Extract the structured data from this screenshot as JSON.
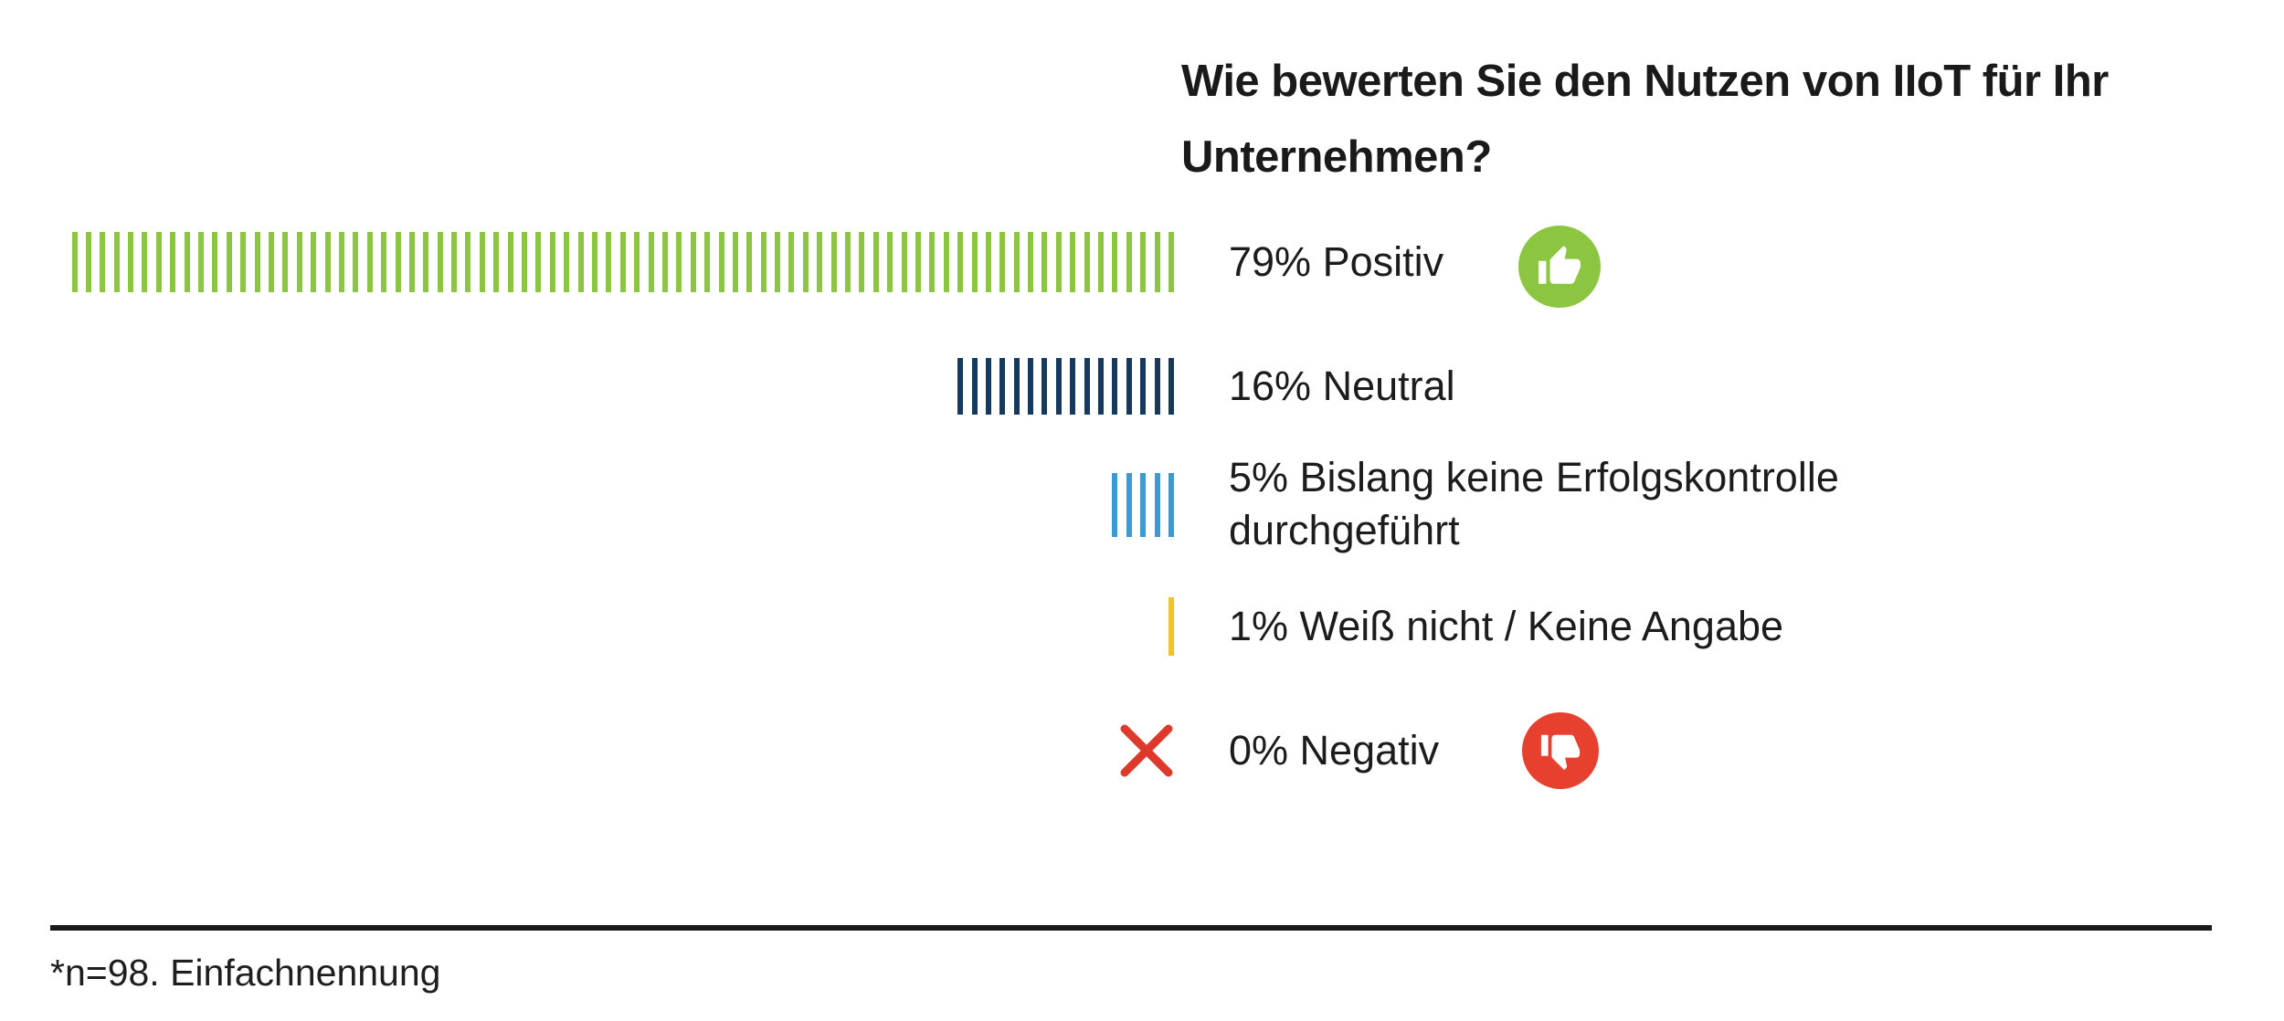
{
  "title": "Wie bewerten Sie den Nutzen von IIoT für Ihr Unternehmen?",
  "footnote": "*n=98. Einfachnennung",
  "colors": {
    "positive_green": "#8CC540",
    "neutral_navy": "#17395B",
    "no_control_blue": "#3B9AD4",
    "dont_know_yellow": "#F4C31F",
    "negative_red": "#E8402F",
    "x_mark_red": "#DE3A2B",
    "text_dark": "#1C1C1C"
  },
  "rows": [
    {
      "label": "79% Positiv",
      "value": 79,
      "color": "#8CC540",
      "icon": "thumbs-up"
    },
    {
      "label": "16% Neutral",
      "value": 16,
      "color": "#17395B"
    },
    {
      "label": "5% Bislang keine Erfolgskontrolle\ndurchgeführt",
      "value": 5,
      "color": "#3B9AD4"
    },
    {
      "label": "1% Weiß nicht / Keine Angabe",
      "value": 1,
      "color": "#F4C31F"
    },
    {
      "label": "0% Negativ",
      "value": 0,
      "color": "#E8402F",
      "icon": "thumbs-down",
      "marker": "x",
      "marker_color": "#DE3A2B"
    }
  ],
  "chart_data": {
    "type": "bar",
    "style": "pictorial tally chart, one vertical tick per percentage point, ticks right-aligned toward labels",
    "title": "Wie bewerten Sie den Nutzen von IIoT für Ihr Unternehmen?",
    "categories": [
      "Positiv",
      "Neutral",
      "Bislang keine Erfolgskontrolle durchgeführt",
      "Weiß nicht / Keine Angabe",
      "Negativ"
    ],
    "values": [
      79,
      16,
      5,
      1,
      0
    ],
    "unit": "%",
    "value_labels": [
      "79% Positiv",
      "16% Neutral",
      "5% Bislang keine Erfolgskontrolle durchgeführt",
      "1% Weiß nicht / Keine Angabe",
      "0% Negativ"
    ],
    "series_colors": [
      "#8CC540",
      "#17395B",
      "#3B9AD4",
      "#F4C31F",
      "#E8402F"
    ],
    "annotations": [
      "thumbs-up icon next to Positiv",
      "red X marks the zero-value Negativ row",
      "thumbs-down icon next to Negativ"
    ],
    "note": "*n=98. Einfachnennung",
    "legend": "none",
    "grid": false,
    "xlim": [
      0,
      79
    ]
  }
}
